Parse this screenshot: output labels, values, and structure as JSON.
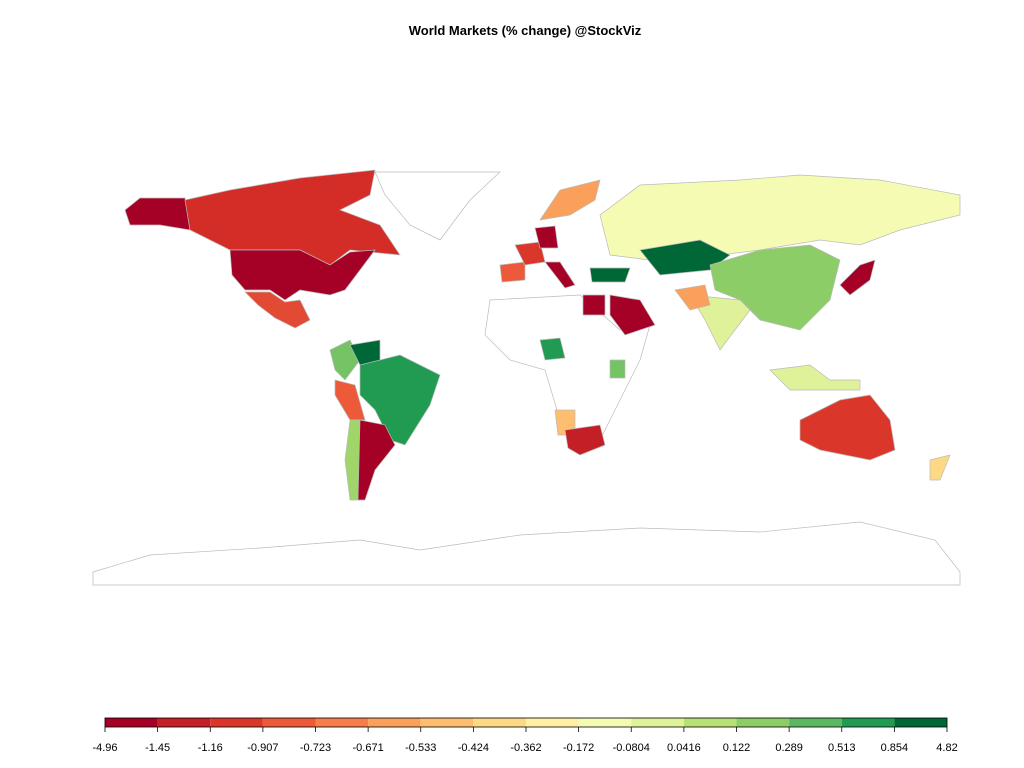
{
  "title": "World Markets (% change) @StockViz",
  "legend": {
    "breaks": [
      -4.96,
      -1.45,
      -1.16,
      -0.907,
      -0.723,
      -0.671,
      -0.533,
      -0.424,
      -0.362,
      -0.172,
      -0.0804,
      0.0416,
      0.122,
      0.289,
      0.513,
      0.854,
      4.82
    ],
    "colors": [
      "#a50026",
      "#c41e27",
      "#da372a",
      "#ed5a39",
      "#f67e4b",
      "#fba05b",
      "#fdbf6f",
      "#fed985",
      "#fff0a6",
      "#f5fbb3",
      "#dff29a",
      "#b7e075",
      "#8ccd67",
      "#5bb761",
      "#219b51",
      "#006837"
    ]
  }
}
